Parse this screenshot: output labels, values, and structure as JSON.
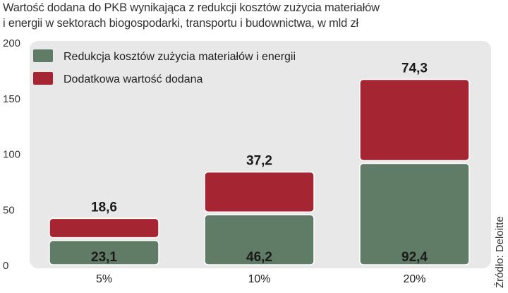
{
  "chart_data": {
    "type": "bar",
    "stacked": true,
    "title": "Wartość dodana do PKB wynikająca z redukcji kosztów zużycia materiałów i energii w sektorach biogospodarki, transportu i budownictwa, w mld zł",
    "title_lines": [
      "Wartość dodana do PKB wynikająca z redukcji kosztów zużycia materiałów",
      "i energii w sektorach biogospodarki, transportu i budownictwa, w mld zł"
    ],
    "categories": [
      "5%",
      "10%",
      "20%"
    ],
    "yticks": [
      "0",
      "50",
      "100",
      "150",
      "200"
    ],
    "ylim": [
      0,
      200
    ],
    "grid": false,
    "legend_position": "top-left",
    "series": [
      {
        "name": "Redukcja kosztów zużycia materiałów i energii",
        "values": [
          23.1,
          46.2,
          92.4
        ],
        "labels": [
          "23,1",
          "46,2",
          "92,4"
        ],
        "color": "#607b66"
      },
      {
        "name": "Dodatkowa wartość dodana",
        "values": [
          18.6,
          37.2,
          74.3
        ],
        "labels": [
          "18,6",
          "37,2",
          "74,3"
        ],
        "color": "#a52532"
      }
    ],
    "source": "Źródło: Deloitte",
    "plot_background": "#e8e8e8"
  }
}
